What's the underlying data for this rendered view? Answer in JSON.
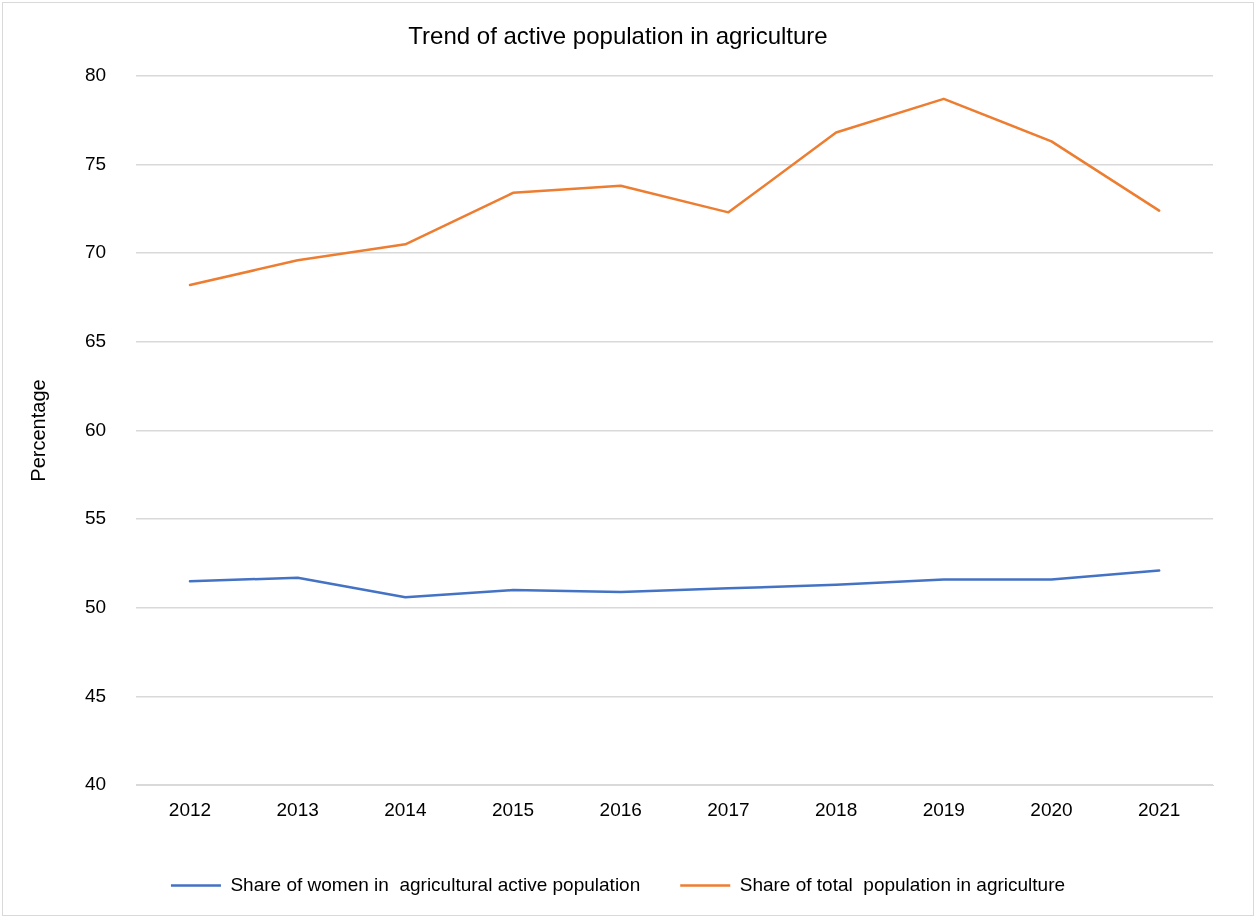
{
  "chart_data": {
    "type": "line",
    "title": "Trend of active population in agriculture",
    "ylabel": "Percentage",
    "categories": [
      "2012",
      "2013",
      "2014",
      "2015",
      "2016",
      "2017",
      "2018",
      "2019",
      "2020",
      "2021"
    ],
    "series": [
      {
        "name": "Share of women in  agricultural active population",
        "color": "#4472c4",
        "values": [
          51.5,
          51.7,
          50.6,
          51.0,
          50.9,
          51.1,
          51.3,
          51.6,
          51.6,
          52.1
        ]
      },
      {
        "name": "Share of total  population in agriculture",
        "color": "#ed7d31",
        "values": [
          68.2,
          69.6,
          70.5,
          73.4,
          73.8,
          72.3,
          76.8,
          78.7,
          76.3,
          72.4
        ]
      }
    ],
    "ylim": [
      40,
      80
    ],
    "yticks": [
      40,
      45,
      50,
      55,
      60,
      65,
      70,
      75,
      80
    ],
    "grid": "y",
    "legend": "bottom",
    "marker": "none",
    "line_style": "solid"
  }
}
